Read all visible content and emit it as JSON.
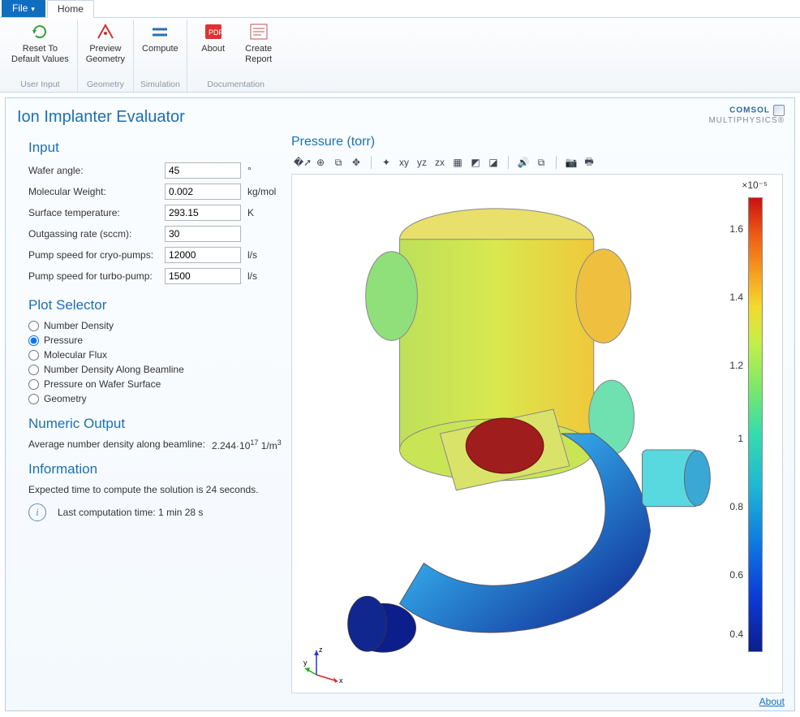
{
  "tabs": {
    "file": "File",
    "home": "Home"
  },
  "ribbon": {
    "groups": [
      {
        "caption": "User Input",
        "buttons": [
          {
            "name": "reset-button",
            "line1": "Reset To",
            "line2": "Default Values"
          }
        ]
      },
      {
        "caption": "Geometry",
        "buttons": [
          {
            "name": "preview-button",
            "line1": "Preview",
            "line2": "Geometry"
          }
        ]
      },
      {
        "caption": "Simulation",
        "buttons": [
          {
            "name": "compute-button",
            "line1": "Compute",
            "line2": ""
          }
        ]
      },
      {
        "caption": "Documentation",
        "buttons": [
          {
            "name": "about-button",
            "line1": "About",
            "line2": ""
          },
          {
            "name": "report-button",
            "line1": "Create",
            "line2": "Report"
          }
        ]
      }
    ]
  },
  "panel_title": "Ion Implanter Evaluator",
  "brand": {
    "line1": "COMSOL",
    "line2": "MULTIPHYSICS"
  },
  "input": {
    "heading": "Input",
    "rows": [
      {
        "label": "Wafer angle:",
        "value": "45",
        "unit": "°"
      },
      {
        "label": "Molecular Weight:",
        "value": "0.002",
        "unit": "kg/mol"
      },
      {
        "label": "Surface temperature:",
        "value": "293.15",
        "unit": "K"
      },
      {
        "label": "Outgassing rate (sccm):",
        "value": "30",
        "unit": ""
      },
      {
        "label": "Pump speed for cryo-pumps:",
        "value": "12000",
        "unit": "l/s"
      },
      {
        "label": "Pump speed for turbo-pump:",
        "value": "1500",
        "unit": "l/s"
      }
    ]
  },
  "plot_selector": {
    "heading": "Plot Selector",
    "options": [
      {
        "label": "Number Density",
        "selected": false
      },
      {
        "label": "Pressure",
        "selected": true
      },
      {
        "label": "Molecular Flux",
        "selected": false
      },
      {
        "label": "Number Density Along Beamline",
        "selected": false
      },
      {
        "label": "Pressure on Wafer Surface",
        "selected": false
      },
      {
        "label": "Geometry",
        "selected": false
      }
    ]
  },
  "numeric_output": {
    "heading": "Numeric Output",
    "label": "Average number density along beamline:",
    "value_html": "2.244·10<sup>17</sup> 1/m<sup>3</sup>"
  },
  "information": {
    "heading": "Information",
    "expected": "Expected time to compute the solution is 24 seconds.",
    "last": "Last computation time: 1 min 28 s"
  },
  "graphics": {
    "title": "Pressure (torr)",
    "toolbar_icons": [
      "zoom-extents-icon",
      "zoom-in-icon",
      "zoom-box-icon",
      "zoom-select-icon",
      "sep",
      "axis-3d-icon",
      "xy-plane-icon",
      "yz-plane-icon",
      "zx-plane-icon",
      "grid-icon",
      "light1-icon",
      "light2-icon",
      "sep",
      "audio-icon",
      "copy-icon",
      "sep",
      "camera-icon",
      "print-icon"
    ],
    "triad_labels": {
      "x": "x",
      "y": "y",
      "z": "z"
    },
    "colorbar": {
      "exponent": "×10⁻⁵",
      "ticks": [
        {
          "label": "1.6",
          "pct": 7
        },
        {
          "label": "1.4",
          "pct": 22
        },
        {
          "label": "1.2",
          "pct": 37
        },
        {
          "label": "1",
          "pct": 53
        },
        {
          "label": "0.8",
          "pct": 68
        },
        {
          "label": "0.6",
          "pct": 83
        },
        {
          "label": "0.4",
          "pct": 96
        }
      ]
    }
  },
  "footer_about": "About"
}
